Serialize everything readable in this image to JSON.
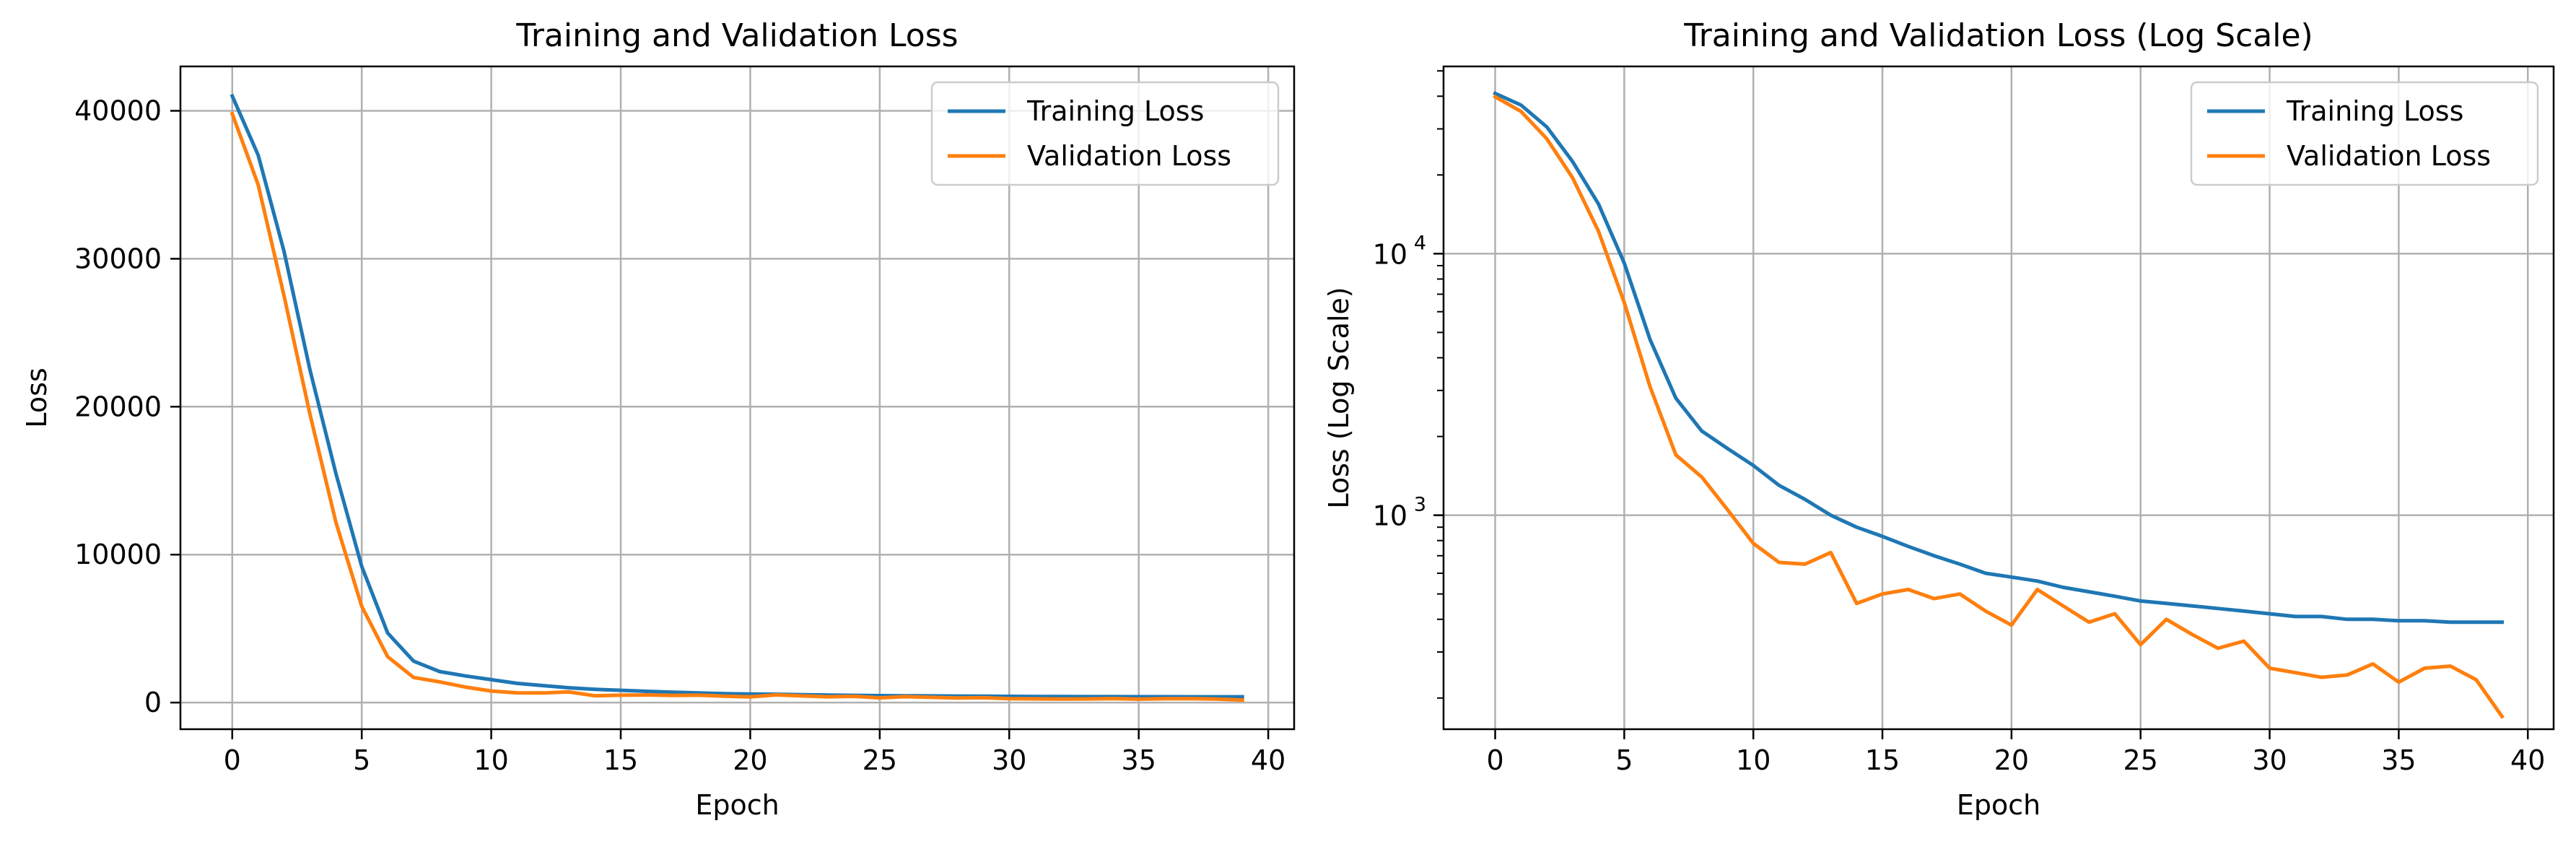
{
  "chart_data": [
    {
      "type": "line",
      "title": "Training and Validation Loss",
      "xlabel": "Epoch",
      "ylabel": "Loss",
      "xlim": [
        -2,
        41
      ],
      "ylim": [
        -1800,
        43000
      ],
      "yscale": "linear",
      "xticks": [
        0,
        5,
        10,
        15,
        20,
        25,
        30,
        35,
        40
      ],
      "yticks": [
        0,
        10000,
        20000,
        30000,
        40000
      ],
      "grid": true,
      "legend_position": "top-right",
      "x": [
        0,
        1,
        2,
        3,
        4,
        5,
        6,
        7,
        8,
        9,
        10,
        11,
        12,
        13,
        14,
        15,
        16,
        17,
        18,
        19,
        20,
        21,
        22,
        23,
        24,
        25,
        26,
        27,
        28,
        29,
        30,
        31,
        32,
        33,
        34,
        35,
        36,
        37,
        38,
        39
      ],
      "series": [
        {
          "name": "Training Loss",
          "color": "#1f77b4",
          "values": [
            41000,
            37000,
            30500,
            22500,
            15500,
            9200,
            4700,
            2800,
            2100,
            1800,
            1550,
            1300,
            1150,
            1000,
            900,
            830,
            760,
            700,
            650,
            600,
            580,
            560,
            530,
            510,
            490,
            470,
            460,
            450,
            440,
            430,
            420,
            410,
            410,
            400,
            400,
            395,
            395,
            390,
            390,
            390
          ]
        },
        {
          "name": "Validation Loss",
          "color": "#ff7f0e",
          "values": [
            39800,
            35000,
            27500,
            19500,
            12200,
            6500,
            3100,
            1700,
            1400,
            1050,
            780,
            660,
            650,
            720,
            460,
            500,
            520,
            480,
            500,
            430,
            380,
            520,
            450,
            390,
            420,
            320,
            400,
            350,
            310,
            330,
            260,
            250,
            240,
            245,
            270,
            230,
            260,
            265,
            235,
            170
          ]
        }
      ]
    },
    {
      "type": "line",
      "title": "Training and Validation Loss (Log Scale)",
      "xlabel": "Epoch",
      "ylabel": "Loss (Log Scale)",
      "xlim": [
        -2,
        41
      ],
      "ylim": [
        152,
        52000
      ],
      "yscale": "log",
      "xticks": [
        0,
        5,
        10,
        15,
        20,
        25,
        30,
        35,
        40
      ],
      "yticks": [
        {
          "value": 1000,
          "base": "10",
          "exp": "3"
        },
        {
          "value": 10000,
          "base": "10",
          "exp": "4"
        }
      ],
      "grid": true,
      "legend_position": "top-right",
      "x": [
        0,
        1,
        2,
        3,
        4,
        5,
        6,
        7,
        8,
        9,
        10,
        11,
        12,
        13,
        14,
        15,
        16,
        17,
        18,
        19,
        20,
        21,
        22,
        23,
        24,
        25,
        26,
        27,
        28,
        29,
        30,
        31,
        32,
        33,
        34,
        35,
        36,
        37,
        38,
        39
      ],
      "series": [
        {
          "name": "Training Loss",
          "color": "#1f77b4",
          "values": [
            41000,
            37000,
            30500,
            22500,
            15500,
            9200,
            4700,
            2800,
            2100,
            1800,
            1550,
            1300,
            1150,
            1000,
            900,
            830,
            760,
            700,
            650,
            600,
            580,
            560,
            530,
            510,
            490,
            470,
            460,
            450,
            440,
            430,
            420,
            410,
            410,
            400,
            400,
            395,
            395,
            390,
            390,
            390
          ]
        },
        {
          "name": "Validation Loss",
          "color": "#ff7f0e",
          "values": [
            39800,
            35000,
            27500,
            19500,
            12200,
            6500,
            3100,
            1700,
            1400,
            1050,
            780,
            660,
            650,
            720,
            460,
            500,
            520,
            480,
            500,
            430,
            380,
            520,
            450,
            390,
            420,
            320,
            400,
            350,
            310,
            330,
            260,
            250,
            240,
            245,
            270,
            230,
            260,
            265,
            235,
            170
          ]
        }
      ]
    }
  ]
}
